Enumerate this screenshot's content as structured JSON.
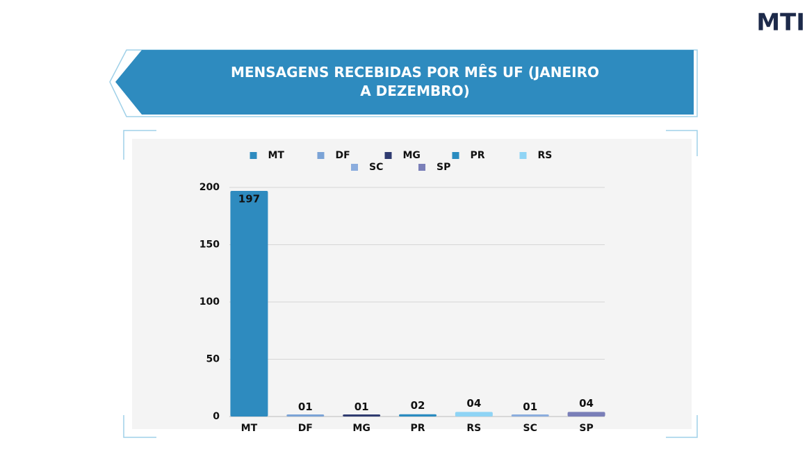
{
  "logo": "MTI",
  "chart_data": {
    "type": "bar",
    "title": "MENSAGENS RECEBIDAS POR MÊS UF (JANEIRO A DEZEMBRO)",
    "categories": [
      "MT",
      "DF",
      "MG",
      "PR",
      "RS",
      "SC",
      "SP"
    ],
    "values": [
      197,
      1,
      1,
      2,
      4,
      1,
      4
    ],
    "value_labels": [
      "197",
      "01",
      "01",
      "02",
      "04",
      "01",
      "04"
    ],
    "colors": [
      "#2e8bbf",
      "#7ba3d6",
      "#2f3b70",
      "#2a8cc0",
      "#8fd4f5",
      "#8badde",
      "#7a7fb8"
    ],
    "ylim": [
      0,
      200
    ],
    "yticks": [
      0,
      50,
      100,
      150,
      200
    ],
    "grid": true,
    "legend": "top"
  }
}
